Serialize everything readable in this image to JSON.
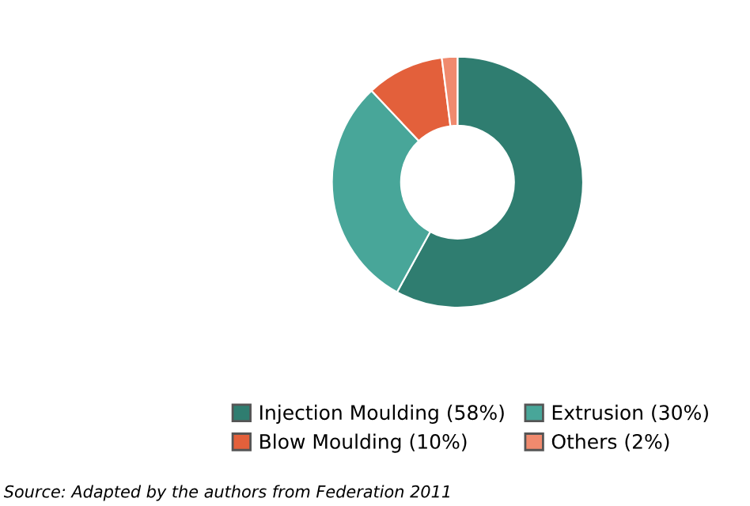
{
  "chart_data": {
    "type": "donut",
    "categories": [
      "Injection Moulding (58%)",
      "Extrusion (30%)",
      "Blow Moulding (10%)",
      "Others (2%)"
    ],
    "values": [
      58,
      30,
      10,
      2
    ],
    "colors": [
      "#2f7d70",
      "#48a699",
      "#e3603b",
      "#f08a6e"
    ],
    "legend": "bottom right",
    "annotations": [
      "Source: Adapted by the authors from Federation 2011"
    ]
  }
}
